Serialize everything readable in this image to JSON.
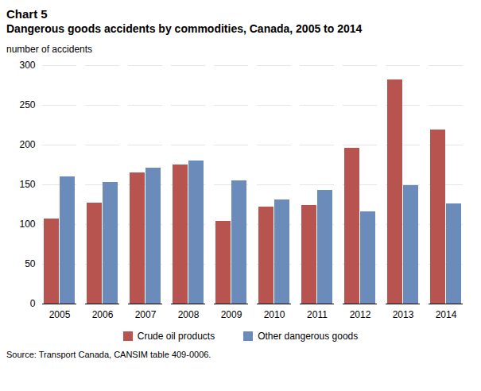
{
  "chart_data": {
    "type": "bar",
    "title": "Chart 5",
    "subtitle": "Dangerous goods accidents by commodities, Canada, 2005 to 2014",
    "y_label": "number of accidents",
    "caption": "Source: Transport Canada, CANSIM table 409-0006.",
    "categories": [
      "2005",
      "2006",
      "2007",
      "2008",
      "2009",
      "2010",
      "2011",
      "2012",
      "2013",
      "2014"
    ],
    "series": [
      {
        "name": "Crude oil products",
        "color": "#b85450",
        "values": [
          107,
          127,
          165,
          175,
          104,
          122,
          124,
          196,
          282,
          219
        ]
      },
      {
        "name": "Other dangerous goods",
        "color": "#6b8cba",
        "values": [
          160,
          153,
          171,
          180,
          155,
          131,
          143,
          116,
          149,
          126
        ]
      }
    ],
    "ylim": [
      0,
      300
    ],
    "yticks": [
      0,
      50,
      100,
      150,
      200,
      250,
      300
    ],
    "grid": true,
    "legend": "bottom"
  }
}
